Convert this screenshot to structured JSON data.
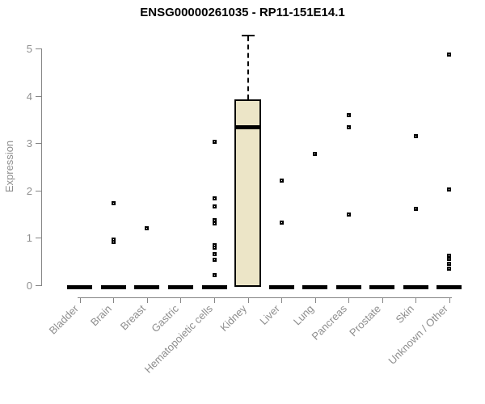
{
  "chart_data": {
    "type": "boxplot",
    "title": "ENSG00000261035 - RP11-151E14.1",
    "xlabel": "",
    "ylabel": "Expression",
    "ylim": [
      0,
      5
    ],
    "yticks": [
      0,
      1,
      2,
      3,
      4,
      5
    ],
    "grid": false,
    "legend": "none",
    "categories": [
      "Bladder",
      "Brain",
      "Breast",
      "Gastric",
      "Hematopoietic cells",
      "Kidney",
      "Liver",
      "Lung",
      "Pancreas",
      "Prostate",
      "Skin",
      "Unknown / Other"
    ],
    "boxes": [
      {
        "label": "Bladder",
        "q1": 0,
        "median": 0,
        "q3": 0,
        "whisker_low": 0,
        "whisker_high": 0,
        "outliers": []
      },
      {
        "label": "Brain",
        "q1": 0,
        "median": 0,
        "q3": 0,
        "whisker_low": 0,
        "whisker_high": 0,
        "outliers": [
          1.73,
          0.97,
          0.91
        ]
      },
      {
        "label": "Breast",
        "q1": 0,
        "median": 0,
        "q3": 0,
        "whisker_low": 0,
        "whisker_high": 0,
        "outliers": [
          1.21
        ]
      },
      {
        "label": "Gastric",
        "q1": 0,
        "median": 0,
        "q3": 0,
        "whisker_low": 0,
        "whisker_high": 0,
        "outliers": []
      },
      {
        "label": "Hematopoietic cells",
        "q1": 0,
        "median": 0,
        "q3": 0,
        "whisker_low": 0,
        "whisker_high": 0,
        "outliers": [
          3.03,
          1.83,
          1.66,
          1.37,
          1.3,
          0.85,
          0.79,
          0.65,
          0.53,
          0.22
        ]
      },
      {
        "label": "Kidney",
        "q1": 0,
        "median": 3.34,
        "q3": 3.93,
        "whisker_low": 0,
        "whisker_high": 5.29,
        "outliers": []
      },
      {
        "label": "Liver",
        "q1": 0,
        "median": 0,
        "q3": 0,
        "whisker_low": 0,
        "whisker_high": 0,
        "outliers": [
          2.21,
          1.33
        ]
      },
      {
        "label": "Lung",
        "q1": 0,
        "median": 0,
        "q3": 0,
        "whisker_low": 0,
        "whisker_high": 0,
        "outliers": [
          2.77
        ]
      },
      {
        "label": "Pancreas",
        "q1": 0,
        "median": 0,
        "q3": 0,
        "whisker_low": 0,
        "whisker_high": 0,
        "outliers": [
          3.59,
          3.33,
          1.49
        ]
      },
      {
        "label": "Prostate",
        "q1": 0,
        "median": 0,
        "q3": 0,
        "whisker_low": 0,
        "whisker_high": 0,
        "outliers": []
      },
      {
        "label": "Skin",
        "q1": 0,
        "median": 0,
        "q3": 0,
        "whisker_low": 0,
        "whisker_high": 0,
        "outliers": [
          3.15,
          1.62
        ]
      },
      {
        "label": "Unknown / Other",
        "q1": 0,
        "median": 0,
        "q3": 0,
        "whisker_low": 0,
        "whisker_high": 0,
        "outliers": [
          4.88,
          2.02,
          0.62,
          0.55,
          0.45,
          0.35
        ]
      }
    ]
  },
  "colors": {
    "box_fill": "#ECE5C7",
    "box_border": "#000000",
    "marks": "#000000",
    "axis": "#858585",
    "tick_label": "#8E8E8E",
    "title": "#000000",
    "background": "#FFFFFF"
  }
}
